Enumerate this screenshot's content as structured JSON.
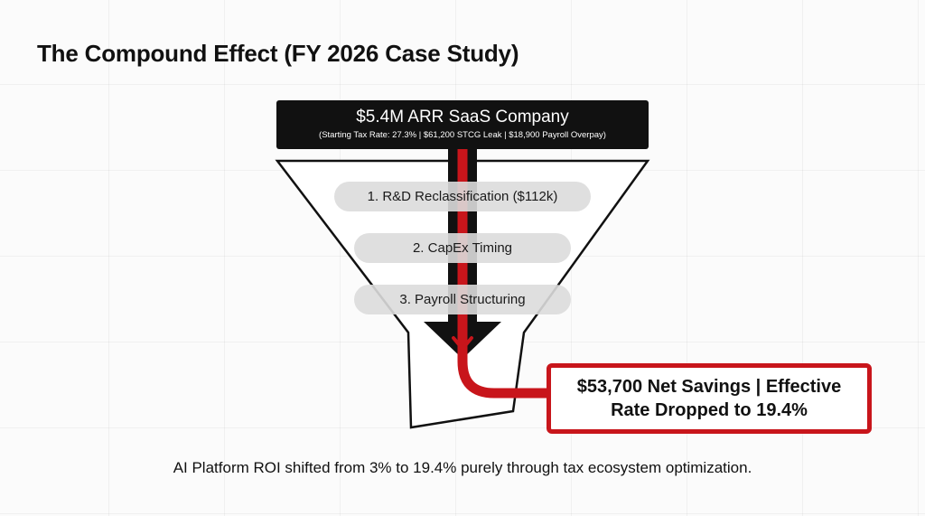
{
  "title": "The Compound Effect (FY 2026 Case Study)",
  "header": {
    "main": "$5.4M ARR SaaS Company",
    "sub": "(Starting Tax Rate: 27.3% | $61,200 STCG Leak | $18,900 Payroll Overpay)"
  },
  "steps": [
    {
      "label": "1. R&D Reclassification ($112k)"
    },
    {
      "label": "2. CapEx Timing"
    },
    {
      "label": "3. Payroll Structuring"
    }
  ],
  "result": {
    "text": "$53,700 Net Savings | Effective Rate Dropped to 19.4%"
  },
  "footer": "AI Platform ROI shifted from 3% to 19.4% purely through tax ecosystem optimization.",
  "colors": {
    "accent_red": "#c8151b",
    "dark": "#111111",
    "pill": "#dcdcdc"
  }
}
